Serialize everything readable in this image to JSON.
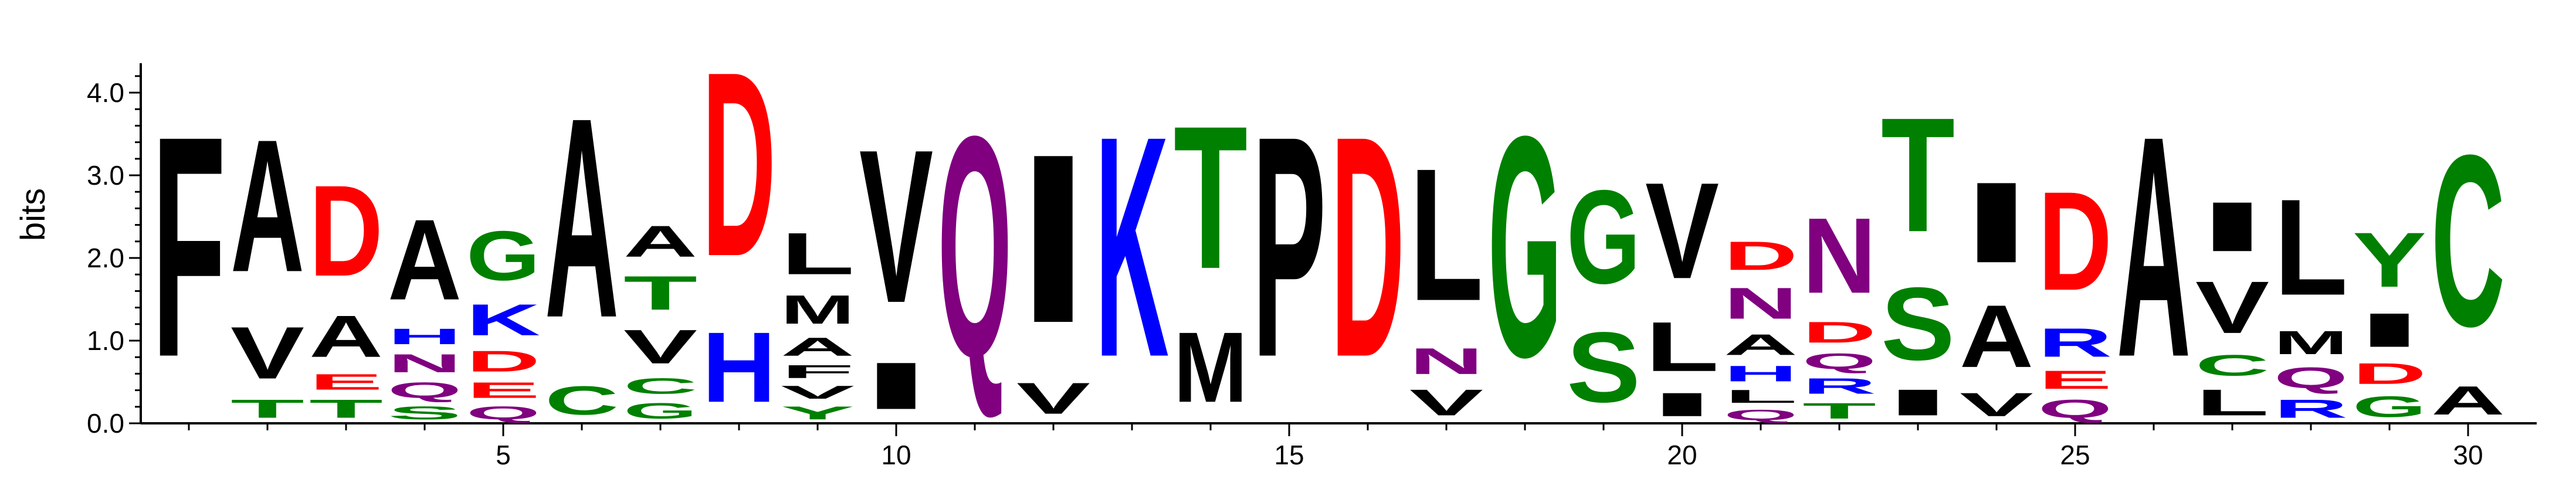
{
  "chart_data": {
    "type": "sequence-logo",
    "ylabel": "bits",
    "ylim": [
      0,
      4.3
    ],
    "y_ticks": [
      "0.0",
      "1.0",
      "2.0",
      "3.0",
      "4.0"
    ],
    "x_ticks": [
      "5",
      "10",
      "15",
      "20",
      "25",
      "30"
    ],
    "colors": {
      "black": "#000000",
      "green": "#008000",
      "red": "#ff0000",
      "blue": "#0000ff",
      "purple": "#800080"
    },
    "positions": [
      {
        "pos": 1,
        "stack": [
          [
            "F",
            4.25,
            "black"
          ]
        ]
      },
      {
        "pos": 2,
        "stack": [
          [
            "T",
            0.35,
            "green"
          ],
          [
            "V",
            1.0,
            "black"
          ],
          [
            "A",
            2.55,
            "black"
          ]
        ]
      },
      {
        "pos": 3,
        "stack": [
          [
            "T",
            0.35,
            "green"
          ],
          [
            "E",
            0.3,
            "red"
          ],
          [
            "A",
            0.8,
            "black"
          ],
          [
            "D",
            1.75,
            "red"
          ]
        ]
      },
      {
        "pos": 4,
        "stack": [
          [
            "S",
            0.25,
            "green"
          ],
          [
            "Q",
            0.3,
            "purple"
          ],
          [
            "N",
            0.35,
            "purple"
          ],
          [
            "H",
            0.3,
            "blue"
          ],
          [
            "A",
            1.55,
            "black"
          ]
        ]
      },
      {
        "pos": 5,
        "stack": [
          [
            "Q",
            0.25,
            "purple"
          ],
          [
            "E",
            0.3,
            "red"
          ],
          [
            "D",
            0.4,
            "red"
          ],
          [
            "K",
            0.6,
            "blue"
          ],
          [
            "G",
            0.95,
            "green"
          ]
        ]
      },
      {
        "pos": 6,
        "stack": [
          [
            "C",
            0.55,
            "green"
          ],
          [
            "A",
            3.85,
            "black"
          ]
        ]
      },
      {
        "pos": 7,
        "stack": [
          [
            "G",
            0.3,
            "green"
          ],
          [
            "C",
            0.3,
            "green"
          ],
          [
            "V",
            0.65,
            "black"
          ],
          [
            "T",
            0.65,
            "green"
          ],
          [
            "A",
            0.6,
            "black"
          ]
        ]
      },
      {
        "pos": 8,
        "stack": [
          [
            "H",
            1.35,
            "blue"
          ],
          [
            "D",
            3.55,
            "red"
          ]
        ]
      },
      {
        "pos": 9,
        "stack": [
          [
            "Y",
            0.25,
            "green"
          ],
          [
            "V",
            0.25,
            "black"
          ],
          [
            "F",
            0.25,
            "black"
          ],
          [
            "A",
            0.35,
            "black"
          ],
          [
            "M",
            0.55,
            "black"
          ],
          [
            "L",
            0.8,
            "black"
          ]
        ]
      },
      {
        "pos": 10,
        "stack": [
          [
            "I",
            0.9,
            "black"
          ],
          [
            "V",
            2.95,
            "black"
          ]
        ]
      },
      {
        "pos": 11,
        "stack": [
          [
            "Q",
            4.25,
            "purple"
          ]
        ]
      },
      {
        "pos": 12,
        "stack": [
          [
            "V",
            0.6,
            "black"
          ],
          [
            "I",
            3.25,
            "black"
          ]
        ]
      },
      {
        "pos": 13,
        "stack": [
          [
            "K",
            4.25,
            "blue"
          ]
        ]
      },
      {
        "pos": 14,
        "stack": [
          [
            "M",
            1.35,
            "black"
          ],
          [
            "T",
            2.75,
            "green"
          ]
        ]
      },
      {
        "pos": 15,
        "stack": [
          [
            "P",
            4.25,
            "black"
          ]
        ]
      },
      {
        "pos": 16,
        "stack": [
          [
            "D",
            4.25,
            "red"
          ]
        ]
      },
      {
        "pos": 17,
        "stack": [
          [
            "V",
            0.5,
            "black"
          ],
          [
            "N",
            0.5,
            "purple"
          ],
          [
            "L",
            2.55,
            "black"
          ]
        ]
      },
      {
        "pos": 18,
        "stack": [
          [
            "G",
            4.25,
            "green"
          ]
        ]
      },
      {
        "pos": 19,
        "stack": [
          [
            "S",
            1.35,
            "green"
          ],
          [
            "G",
            1.8,
            "green"
          ]
        ]
      },
      {
        "pos": 20,
        "stack": [
          [
            "I",
            0.45,
            "black"
          ],
          [
            "L",
            0.95,
            "black"
          ],
          [
            "V",
            1.85,
            "black"
          ]
        ]
      },
      {
        "pos": 21,
        "stack": [
          [
            "Q",
            0.2,
            "purple"
          ],
          [
            "L",
            0.25,
            "black"
          ],
          [
            "H",
            0.3,
            "blue"
          ],
          [
            "A",
            0.4,
            "black"
          ],
          [
            "N",
            0.6,
            "purple"
          ],
          [
            "D",
            0.55,
            "red"
          ]
        ]
      },
      {
        "pos": 22,
        "stack": [
          [
            "T",
            0.3,
            "green"
          ],
          [
            "R",
            0.3,
            "blue"
          ],
          [
            "Q",
            0.3,
            "purple"
          ],
          [
            "D",
            0.4,
            "red"
          ],
          [
            "N",
            1.45,
            "purple"
          ]
        ]
      },
      {
        "pos": 23,
        "stack": [
          [
            "I",
            0.5,
            "black"
          ],
          [
            "S",
            1.4,
            "green"
          ],
          [
            "T",
            2.2,
            "green"
          ]
        ]
      },
      {
        "pos": 24,
        "stack": [
          [
            "V",
            0.45,
            "black"
          ],
          [
            "A",
            1.2,
            "black"
          ],
          [
            "I",
            1.55,
            "black"
          ]
        ]
      },
      {
        "pos": 25,
        "stack": [
          [
            "Q",
            0.35,
            "purple"
          ],
          [
            "E",
            0.35,
            "red"
          ],
          [
            "R",
            0.55,
            "blue"
          ],
          [
            "D",
            1.9,
            "red"
          ]
        ]
      },
      {
        "pos": 26,
        "stack": [
          [
            "A",
            4.25,
            "black"
          ]
        ]
      },
      {
        "pos": 27,
        "stack": [
          [
            "L",
            0.5,
            "black"
          ],
          [
            "C",
            0.4,
            "green"
          ],
          [
            "V",
            1.0,
            "black"
          ],
          [
            "I",
            0.95,
            "black"
          ]
        ]
      },
      {
        "pos": 28,
        "stack": [
          [
            "R",
            0.35,
            "blue"
          ],
          [
            "Q",
            0.4,
            "purple"
          ],
          [
            "M",
            0.45,
            "black"
          ],
          [
            "L",
            1.85,
            "black"
          ]
        ]
      },
      {
        "pos": 29,
        "stack": [
          [
            "G",
            0.4,
            "green"
          ],
          [
            "D",
            0.4,
            "red"
          ],
          [
            "I",
            0.65,
            "black"
          ],
          [
            "Y",
            1.05,
            "green"
          ]
        ]
      },
      {
        "pos": 30,
        "stack": [
          [
            "A",
            0.55,
            "black"
          ],
          [
            "C",
            3.3,
            "green"
          ]
        ]
      }
    ]
  }
}
